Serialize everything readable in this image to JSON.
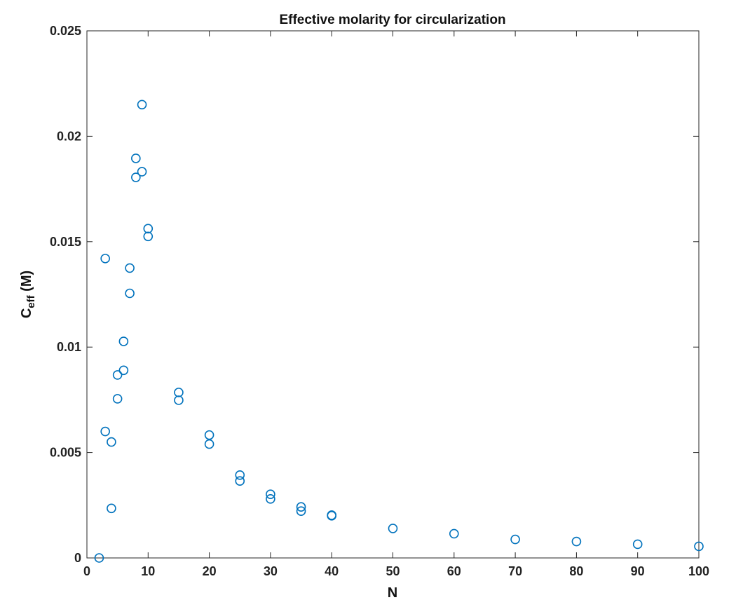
{
  "chart_data": {
    "type": "scatter",
    "title": "Effective molarity for circularization",
    "xlabel": "N",
    "ylabel": {
      "main": "C",
      "subscript": "eff",
      "suffix": " (M)"
    },
    "xlim": [
      0,
      100
    ],
    "ylim": [
      0,
      0.025
    ],
    "xticks": [
      0,
      10,
      20,
      30,
      40,
      50,
      60,
      70,
      80,
      90,
      100
    ],
    "xtick_labels": [
      "0",
      "10",
      "20",
      "30",
      "40",
      "50",
      "60",
      "70",
      "80",
      "90",
      "100"
    ],
    "yticks": [
      0,
      0.005,
      0.01,
      0.015,
      0.02,
      0.025
    ],
    "ytick_labels": [
      "0",
      "0.005",
      "0.01",
      "0.015",
      "0.02",
      "0.025"
    ],
    "grid": false,
    "marker": "circle-open",
    "series": [
      {
        "color": "#0072BD",
        "points": [
          {
            "x": 2,
            "y": 0.0
          },
          {
            "x": 3,
            "y": 0.0142
          },
          {
            "x": 3,
            "y": 0.006
          },
          {
            "x": 4,
            "y": 0.0055
          },
          {
            "x": 4,
            "y": 0.00235
          },
          {
            "x": 5,
            "y": 0.00868
          },
          {
            "x": 5,
            "y": 0.00755
          },
          {
            "x": 6,
            "y": 0.01027
          },
          {
            "x": 6,
            "y": 0.0089
          },
          {
            "x": 7,
            "y": 0.01375
          },
          {
            "x": 7,
            "y": 0.01255
          },
          {
            "x": 8,
            "y": 0.01895
          },
          {
            "x": 8,
            "y": 0.01805
          },
          {
            "x": 9,
            "y": 0.0215
          },
          {
            "x": 9,
            "y": 0.01832
          },
          {
            "x": 10,
            "y": 0.01562
          },
          {
            "x": 10,
            "y": 0.01525
          },
          {
            "x": 15,
            "y": 0.00785
          },
          {
            "x": 15,
            "y": 0.00748
          },
          {
            "x": 20,
            "y": 0.00583
          },
          {
            "x": 20,
            "y": 0.0054
          },
          {
            "x": 25,
            "y": 0.00393
          },
          {
            "x": 25,
            "y": 0.00365
          },
          {
            "x": 30,
            "y": 0.00302
          },
          {
            "x": 30,
            "y": 0.0028
          },
          {
            "x": 35,
            "y": 0.00242
          },
          {
            "x": 35,
            "y": 0.00222
          },
          {
            "x": 40,
            "y": 0.00203
          },
          {
            "x": 40,
            "y": 0.002
          },
          {
            "x": 50,
            "y": 0.0014
          },
          {
            "x": 60,
            "y": 0.00115
          },
          {
            "x": 70,
            "y": 0.00088
          },
          {
            "x": 80,
            "y": 0.00078
          },
          {
            "x": 90,
            "y": 0.00065
          },
          {
            "x": 100,
            "y": 0.00055
          }
        ]
      }
    ]
  }
}
